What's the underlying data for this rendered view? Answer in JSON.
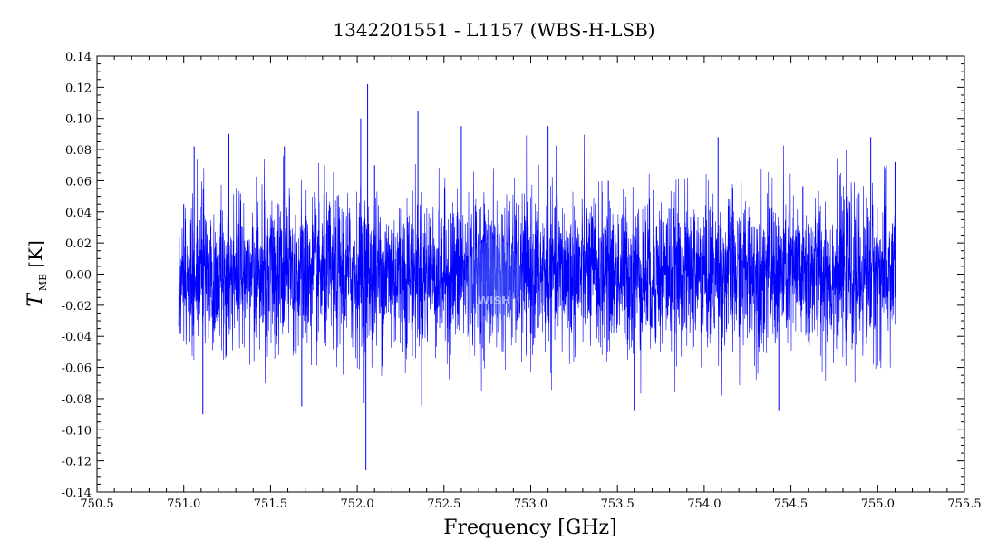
{
  "chart_data": {
    "type": "line",
    "title": "1342201551 - L1157 (WBS-H-LSB)",
    "xlabel": "Frequency [GHz]",
    "ylabel": {
      "symbol": "T",
      "subscript": "MB",
      "unit": "[K]"
    },
    "xlim": [
      750.5,
      755.5
    ],
    "ylim": [
      -0.14,
      0.14
    ],
    "x_ticks": [
      "750.5",
      "751.0",
      "751.5",
      "752.0",
      "752.5",
      "753.0",
      "753.5",
      "754.0",
      "754.5",
      "755.0",
      "755.5"
    ],
    "y_ticks": [
      "0.14",
      "0.12",
      "0.10",
      "0.08",
      "0.06",
      "0.04",
      "0.02",
      "0.00",
      "-0.02",
      "-0.04",
      "-0.06",
      "-0.08",
      "-0.10",
      "-0.12",
      "-0.14"
    ],
    "series": [
      {
        "color": "#0000ff",
        "x_range": [
          750.97,
          755.1
        ],
        "noise_rms": 0.025,
        "x": [
          751.0,
          751.06,
          751.11,
          751.26,
          751.58,
          751.68,
          752.02,
          752.05,
          752.06,
          752.1,
          752.35,
          752.6,
          753.1,
          753.6,
          754.08,
          754.43,
          754.96,
          755.05,
          755.1
        ],
        "y": [
          0.045,
          0.082,
          -0.09,
          0.09,
          0.082,
          -0.085,
          0.1,
          -0.126,
          0.122,
          0.07,
          0.105,
          0.095,
          0.095,
          -0.088,
          0.088,
          -0.088,
          0.088,
          0.07,
          0.072
        ]
      }
    ],
    "grid": false,
    "watermark": "WISH"
  }
}
